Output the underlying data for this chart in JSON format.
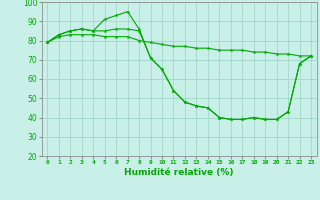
{
  "xlabel": "Humidité relative (%)",
  "background_color": "#c8f0e8",
  "grid_color": "#a0d8c8",
  "line_color": "#00aa00",
  "xlim": [
    -0.5,
    23.5
  ],
  "ylim": [
    20,
    100
  ],
  "yticks": [
    20,
    30,
    40,
    50,
    60,
    70,
    80,
    90,
    100
  ],
  "xticks": [
    0,
    1,
    2,
    3,
    4,
    5,
    6,
    7,
    8,
    9,
    10,
    11,
    12,
    13,
    14,
    15,
    16,
    17,
    18,
    19,
    20,
    21,
    22,
    23
  ],
  "line1_y": [
    79,
    83,
    85,
    86,
    85,
    91,
    93,
    95,
    86,
    71,
    65,
    54,
    48,
    46,
    45,
    40,
    39,
    39,
    40,
    39,
    39,
    43,
    68,
    72
  ],
  "line2_y": [
    79,
    83,
    85,
    86,
    85,
    85,
    86,
    86,
    85,
    71,
    65,
    54,
    48,
    46,
    45,
    40,
    39,
    39,
    40,
    39,
    39,
    43,
    68,
    72
  ],
  "line3_y": [
    79,
    82,
    83,
    83,
    83,
    82,
    82,
    82,
    80,
    79,
    78,
    77,
    77,
    76,
    76,
    75,
    75,
    75,
    74,
    74,
    73,
    73,
    72,
    72
  ]
}
